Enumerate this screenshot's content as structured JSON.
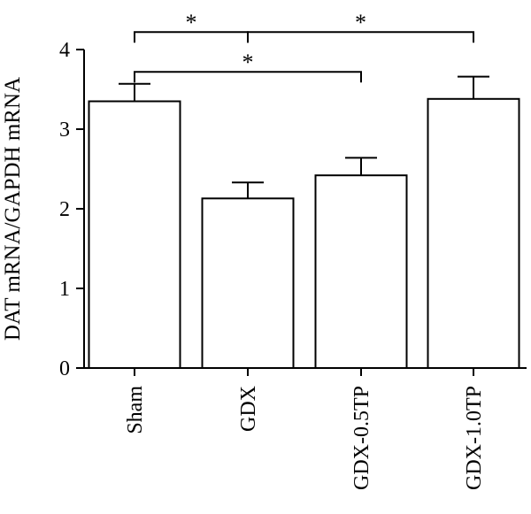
{
  "chart_data": {
    "type": "bar",
    "title": "",
    "xlabel": "",
    "ylabel": "DAT mRNA/GAPDH mRNA",
    "ylim": [
      0,
      4
    ],
    "yticks": [
      "0",
      "1",
      "2",
      "3",
      "4"
    ],
    "categories": [
      "Sham",
      "GDX",
      "GDX-0.5TP",
      "GDX-1.0TP"
    ],
    "values": [
      3.35,
      2.13,
      2.42,
      3.38
    ],
    "errors": [
      0.22,
      0.2,
      0.22,
      0.28
    ],
    "grid": false,
    "legend": "none",
    "bar_fill": "#ffffff",
    "bar_stroke": "#000000",
    "significance": [
      {
        "from": 0,
        "to": 1,
        "label": "*",
        "level": 4.22
      },
      {
        "from": 1,
        "to": 3,
        "label": "*",
        "level": 4.22
      },
      {
        "from": 0,
        "to": 2,
        "label": "*",
        "level": 3.72
      }
    ]
  }
}
